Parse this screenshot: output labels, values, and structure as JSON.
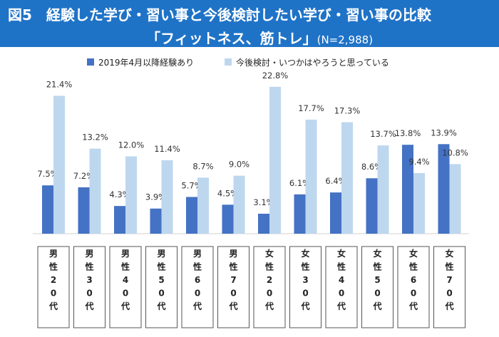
{
  "header": {
    "title_line1": "図5　経験した学び・習い事と今後検討したい学び・習い事の比較",
    "title_line2": "「フィットネス、筋トレ」",
    "sample_size": "(N=2,988)"
  },
  "colors": {
    "header_bg": "#1f73c7",
    "series_experienced": "#4472c4",
    "series_considering": "#bdd7ee"
  },
  "chart_data": {
    "type": "bar",
    "title": "経験した学び・習い事と今後検討したい学び・習い事の比較「フィットネス、筋トレ」",
    "categories": [
      "男性20代",
      "男性30代",
      "男性40代",
      "男性50代",
      "男性60代",
      "男性70代",
      "女性20代",
      "女性30代",
      "女性40代",
      "女性50代",
      "女性60代",
      "女性70代"
    ],
    "series": [
      {
        "name": "2019年4月以降経験あり",
        "values": [
          7.5,
          7.2,
          4.3,
          3.9,
          5.7,
          4.5,
          3.1,
          6.1,
          6.4,
          8.6,
          13.8,
          13.9
        ]
      },
      {
        "name": "今後検討・いつかはやろうと思っている",
        "values": [
          21.4,
          13.2,
          12.0,
          11.4,
          8.7,
          9.0,
          22.8,
          17.7,
          17.3,
          13.7,
          9.4,
          10.8
        ]
      }
    ],
    "value_labels": [
      [
        "7.5%",
        "7.2%",
        "4.3%",
        "3.9%",
        "5.7%",
        "4.5%",
        "3.1%",
        "6.1%",
        "6.4%",
        "8.6%",
        "13.8%",
        "13.9%"
      ],
      [
        "21.4%",
        "13.2%",
        "12.0%",
        "11.4%",
        "8.7%",
        "9.0%",
        "22.8%",
        "17.7%",
        "17.3%",
        "13.7%",
        "9.4%",
        "10.8%"
      ]
    ],
    "unit": "%",
    "ylim": [
      0,
      23
    ],
    "xlabel": "",
    "ylabel": "",
    "legend_position": "top"
  }
}
